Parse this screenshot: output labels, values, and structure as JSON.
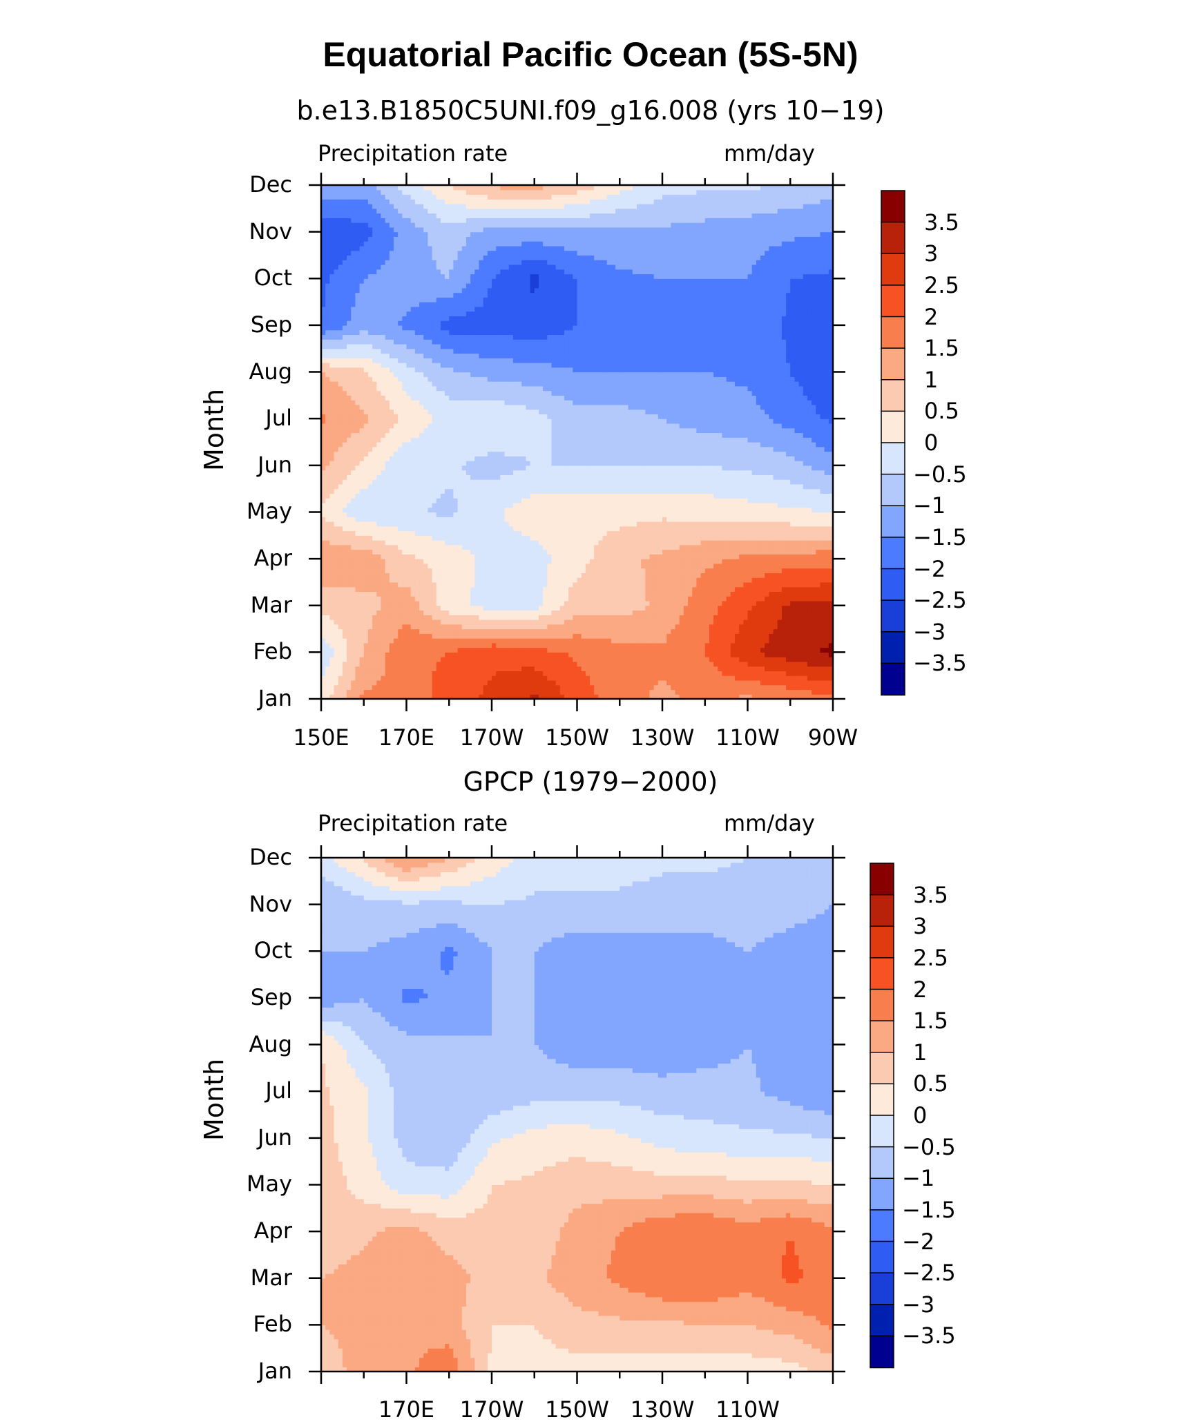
{
  "figure_title": "Equatorial Pacific Ocean (5S-5N)",
  "colors": {
    "levels_neg": [
      "#000090",
      "#0020b0",
      "#1a3fd9",
      "#2f5cf3",
      "#4c7bff",
      "#82a6fd",
      "#b3c8fb",
      "#d8e6fd"
    ],
    "levels_pos": [
      "#fdeadb",
      "#fcc9b1",
      "#fba982",
      "#f97e4d",
      "#f75223",
      "#e03a0f",
      "#b8210a",
      "#880000"
    ]
  },
  "chart_data": [
    {
      "type": "heatmap",
      "title": "b.e13.B1850C5UNI.f09_g16.008 (yrs 10−19)",
      "left_label": "Precipitation  rate",
      "right_label": "mm/day",
      "ylabel": "Month",
      "xlabel": "",
      "y_ticks": [
        "Jan",
        "Feb",
        "Mar",
        "Apr",
        "May",
        "Jun",
        "Jul",
        "Aug",
        "Sep",
        "Oct",
        "Nov",
        "Dec"
      ],
      "x_ticks": [
        "150E",
        "170E",
        "170W",
        "150W",
        "130W",
        "110W",
        "90W"
      ],
      "x_lon": [
        150,
        170,
        190,
        210,
        230,
        250,
        270
      ],
      "xlim": [
        150,
        270
      ],
      "colorbar_labels": [
        "3.5",
        "3",
        "2.5",
        "2",
        "1.5",
        "1",
        "0.5",
        "0",
        "−0.5",
        "−1",
        "−1.5",
        "−2",
        "−2.5",
        "−3",
        "−3.5"
      ],
      "contour_levels": [
        -3.5,
        -3,
        -2.5,
        -2,
        -1.5,
        -1,
        -0.5,
        0,
        0.5,
        1,
        1.5,
        2,
        2.5,
        3,
        3.5
      ],
      "grid_lon": [
        150,
        160,
        170,
        180,
        190,
        200,
        210,
        220,
        230,
        240,
        250,
        260,
        270
      ],
      "values": [
        [
          0.2,
          1.6,
          1.6,
          2.3,
          2.6,
          3.1,
          2.3,
          1.7,
          1.4,
          1.6,
          1.4,
          1.6,
          1.9
        ],
        [
          -0.4,
          1.0,
          1.9,
          2.0,
          2.4,
          2.2,
          1.9,
          1.7,
          1.6,
          2.0,
          2.9,
          3.3,
          3.6
        ],
        [
          0.7,
          0.8,
          1.3,
          0.2,
          -0.2,
          -0.2,
          0.8,
          0.8,
          1.1,
          1.8,
          2.4,
          3.1,
          3.1
        ],
        [
          1.4,
          1.4,
          0.6,
          0.3,
          -0.2,
          -0.2,
          0.3,
          0.9,
          1.1,
          1.4,
          1.6,
          1.7,
          1.8
        ],
        [
          0.4,
          -0.4,
          -0.4,
          -0.6,
          -0.1,
          0.3,
          0.3,
          0.3,
          0.4,
          0.3,
          0.2,
          0.1,
          0.0
        ],
        [
          1.1,
          0.4,
          -0.4,
          -0.4,
          -0.7,
          -0.5,
          -0.5,
          -0.5,
          -0.5,
          -0.5,
          -0.6,
          -0.8,
          -1.3
        ],
        [
          1.6,
          1.1,
          0.4,
          -0.2,
          0.0,
          -0.3,
          -0.8,
          -0.8,
          -1.0,
          -1.2,
          -1.3,
          -1.7,
          -2.1
        ],
        [
          1.0,
          0.6,
          -0.3,
          -0.9,
          -1.2,
          -1.3,
          -1.5,
          -1.5,
          -1.5,
          -1.5,
          -1.6,
          -2.0,
          -2.4
        ],
        [
          -2.0,
          -1.2,
          -1.6,
          -2.2,
          -2.2,
          -2.3,
          -2.0,
          -1.7,
          -1.7,
          -1.7,
          -1.6,
          -2.1,
          -2.3
        ],
        [
          -2.1,
          -1.5,
          -1.2,
          -1.0,
          -2.0,
          -2.6,
          -2.0,
          -1.6,
          -1.5,
          -1.5,
          -1.5,
          -2.0,
          -2.1
        ],
        [
          -2.5,
          -2.2,
          -1.3,
          -0.7,
          -1.2,
          -1.2,
          -1.1,
          -1.1,
          -1.1,
          -1.2,
          -1.3,
          -1.4,
          -1.5
        ],
        [
          -1.0,
          -1.2,
          -0.3,
          0.5,
          1.1,
          1.2,
          0.8,
          0.2,
          -0.3,
          -0.4,
          -0.4,
          -0.6,
          -0.8
        ]
      ]
    },
    {
      "type": "heatmap",
      "title": "GPCP (1979−2000)",
      "left_label": "Precipitation  rate",
      "right_label": "mm/day",
      "ylabel": "Month",
      "xlabel": "",
      "y_ticks": [
        "Jan",
        "Feb",
        "Mar",
        "Apr",
        "May",
        "Jun",
        "Jul",
        "Aug",
        "Sep",
        "Oct",
        "Nov",
        "Dec"
      ],
      "x_ticks": [
        "170E",
        "170W",
        "150W",
        "130W",
        "110W"
      ],
      "x_lon": [
        170,
        190,
        210,
        230,
        250
      ],
      "xlim": [
        150,
        270
      ],
      "colorbar_labels": [
        "3.5",
        "3",
        "2.5",
        "2",
        "1.5",
        "1",
        "0.5",
        "0",
        "−0.5",
        "−1",
        "−1.5",
        "−2",
        "−2.5",
        "−3",
        "−3.5"
      ],
      "contour_levels": [
        -3.5,
        -3,
        -2.5,
        -2,
        -1.5,
        -1,
        -0.5,
        0,
        0.5,
        1,
        1.5,
        2,
        2.5,
        3,
        3.5
      ],
      "grid_lon": [
        150,
        160,
        170,
        180,
        190,
        200,
        210,
        220,
        230,
        240,
        250,
        260,
        270
      ],
      "values": [
        [
          0.6,
          1.3,
          1.4,
          1.9,
          0.4,
          0.3,
          0.3,
          0.2,
          0.2,
          0.1,
          0.2,
          0.3,
          0.7
        ],
        [
          1.0,
          1.2,
          1.4,
          1.2,
          0.5,
          0.5,
          0.8,
          0.9,
          0.9,
          1.0,
          1.0,
          1.2,
          1.6
        ],
        [
          1.0,
          1.2,
          1.5,
          1.2,
          0.8,
          0.9,
          1.3,
          1.6,
          2.0,
          2.0,
          1.7,
          2.1,
          1.8
        ],
        [
          0.6,
          0.9,
          1.2,
          0.8,
          0.7,
          0.7,
          1.2,
          1.5,
          1.9,
          2.0,
          1.7,
          2.0,
          1.6
        ],
        [
          0.8,
          0.3,
          -0.3,
          -0.3,
          0.5,
          0.6,
          0.8,
          0.8,
          0.7,
          0.7,
          0.6,
          0.6,
          0.5
        ],
        [
          0.7,
          0.1,
          -0.7,
          -0.9,
          -0.1,
          0.2,
          0.3,
          0.1,
          -0.2,
          -0.3,
          -0.4,
          -0.4,
          -0.5
        ],
        [
          0.6,
          0.1,
          -0.8,
          -0.9,
          -0.9,
          -0.7,
          -0.7,
          -0.7,
          -0.8,
          -0.8,
          -0.9,
          -1.2,
          -1.5
        ],
        [
          0.5,
          -0.5,
          -0.8,
          -0.9,
          -1.0,
          -1.0,
          -1.3,
          -1.3,
          -1.4,
          -1.2,
          -1.0,
          -1.2,
          -1.4
        ],
        [
          -1.3,
          -1.0,
          -1.6,
          -1.4,
          -1.0,
          -1.0,
          -1.3,
          -1.4,
          -1.4,
          -1.3,
          -1.0,
          -1.2,
          -1.3
        ],
        [
          -1.0,
          -1.0,
          -1.2,
          -1.6,
          -1.0,
          -1.0,
          -1.3,
          -1.3,
          -1.2,
          -1.2,
          -1.0,
          -1.2,
          -1.3
        ],
        [
          -1.0,
          -0.7,
          -0.6,
          -0.6,
          -0.5,
          -0.6,
          -0.6,
          -0.6,
          -0.7,
          -0.7,
          -0.7,
          -0.8,
          -1.0
        ],
        [
          -0.2,
          0.6,
          1.6,
          1.0,
          0.3,
          -0.2,
          -0.3,
          -0.3,
          -0.4,
          -0.4,
          -0.5,
          -0.5,
          -0.6
        ]
      ]
    }
  ]
}
